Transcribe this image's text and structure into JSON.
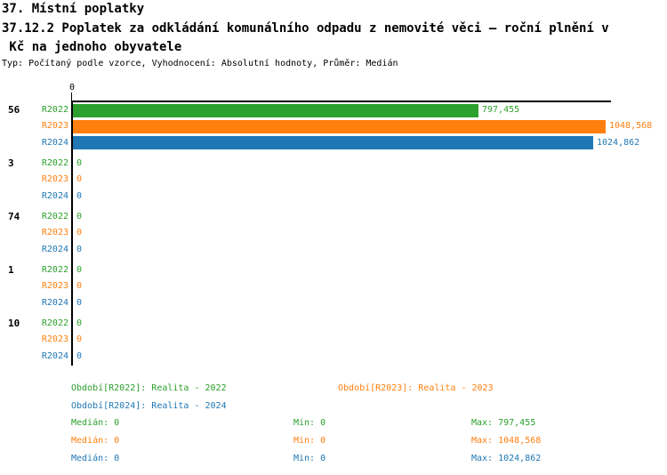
{
  "header": {
    "title_line1": "37. Místní poplatky",
    "title_line2": "37.12.2 Poplatek za odkládání komunálního odpadu z nemovité věci – roční plnění v",
    "title_line3": " Kč na jednoho obyvatele",
    "subtitle": "Typ: Počítaný podle vzorce, Vyhodnocení: Absolutní hodnoty, Průměr: Medián"
  },
  "colors": {
    "r2022": "#2ca02c",
    "r2023": "#ff7f0e",
    "r2024": "#1f77b4",
    "axis": "#000000",
    "background": "#ffffff"
  },
  "chart_data": {
    "type": "bar",
    "orientation": "horizontal",
    "x_axis": {
      "tick_labels": [
        "0"
      ],
      "min": 0,
      "max_shown": 1048.568,
      "grid": false
    },
    "categories": [
      "56",
      "3",
      "74",
      "1",
      "10"
    ],
    "series": [
      {
        "name": "R2022",
        "color": "#2ca02c",
        "values": [
          797.455,
          0,
          0,
          0,
          0
        ],
        "value_labels": [
          "797,455",
          "0",
          "0",
          "0",
          "0"
        ]
      },
      {
        "name": "R2023",
        "color": "#ff7f0e",
        "values": [
          1048.568,
          0,
          0,
          0,
          0
        ],
        "value_labels": [
          "1048,568",
          "0",
          "0",
          "0",
          "0"
        ]
      },
      {
        "name": "R2024",
        "color": "#1f77b4",
        "values": [
          1024.862,
          0,
          0,
          0,
          0
        ],
        "value_labels": [
          "1024,862",
          "0",
          "0",
          "0",
          "0"
        ]
      }
    ],
    "legend": [
      "Období[R2022]: Realita - 2022",
      "Období[R2023]: Realita - 2023",
      "Období[R2024]: Realita - 2024"
    ],
    "stats": [
      {
        "median": "Medián: 0",
        "min": "Min: 0",
        "max": "Max: 797,455"
      },
      {
        "median": "Medián: 0",
        "min": "Min: 0",
        "max": "Max: 1048,568"
      },
      {
        "median": "Medián: 0",
        "min": "Min: 0",
        "max": "Max: 1024,862"
      }
    ]
  }
}
